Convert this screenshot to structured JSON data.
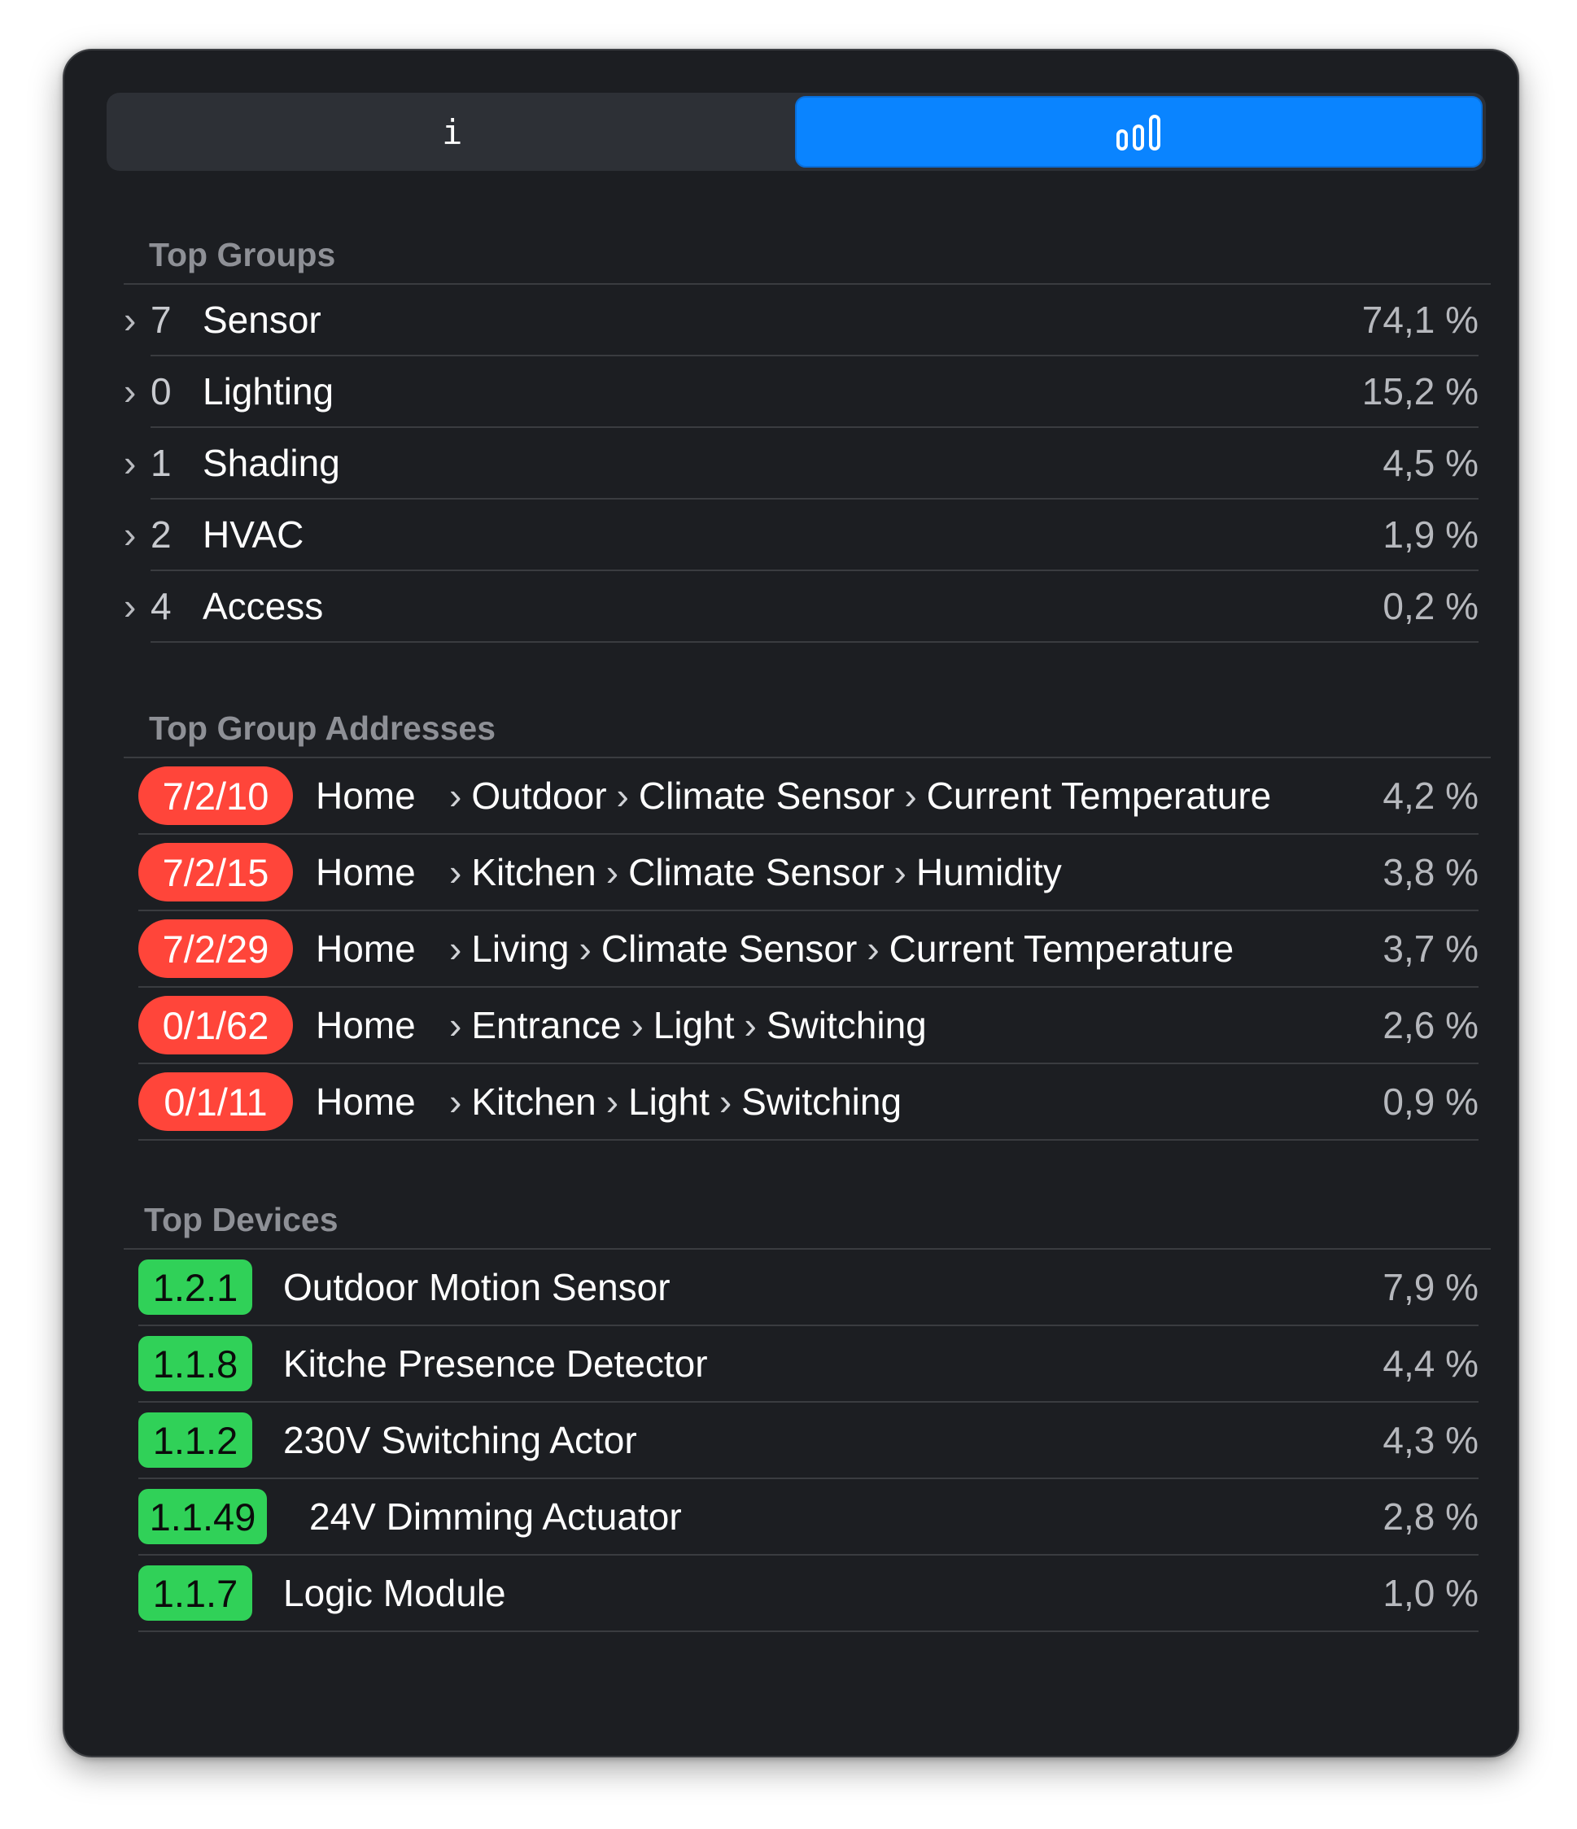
{
  "tabs": {
    "info_glyph": "i",
    "info_icon": "info-icon",
    "stats_icon": "bar-chart-icon"
  },
  "groups": {
    "title": "Top Groups",
    "items": [
      {
        "number": "7",
        "name": "Sensor",
        "value": "74,1 %"
      },
      {
        "number": "0",
        "name": "Lighting",
        "value": "15,2 %"
      },
      {
        "number": "1",
        "name": "Shading",
        "value": "4,5 %"
      },
      {
        "number": "2",
        "name": "HVAC",
        "value": "1,9 %"
      },
      {
        "number": "4",
        "name": "Access",
        "value": "0,2 %"
      }
    ]
  },
  "addresses": {
    "title": "Top Group Addresses",
    "items": [
      {
        "address": "7/2/10",
        "path": [
          "Home",
          "Outdoor",
          "Climate Sensor",
          "Current Temperature"
        ],
        "value": "4,2 %"
      },
      {
        "address": "7/2/15",
        "path": [
          "Home",
          "Kitchen",
          "Climate Sensor",
          "Humidity"
        ],
        "value": "3,8 %"
      },
      {
        "address": "7/2/29",
        "path": [
          "Home",
          "Living",
          "Climate Sensor",
          "Current Temperature"
        ],
        "value": "3,7 %"
      },
      {
        "address": "0/1/62",
        "path": [
          "Home",
          "Entrance",
          "Light",
          "Switching"
        ],
        "value": "2,6 %"
      },
      {
        "address": "0/1/11",
        "path": [
          "Home",
          "Kitchen",
          "Light",
          "Switching"
        ],
        "value": "0,9 %"
      }
    ]
  },
  "devices": {
    "title": "Top Devices",
    "items": [
      {
        "address": "1.2.1",
        "name": "Outdoor Motion Sensor",
        "value": "7,9 %"
      },
      {
        "address": "1.1.8",
        "name": "Kitche Presence Detector",
        "value": "4,4 %"
      },
      {
        "address": "1.1.2",
        "name": "230V Switching Actor",
        "value": "4,3 %"
      },
      {
        "address": "1.1.49",
        "name": "24V Dimming Actuator",
        "value": "2,8 %"
      },
      {
        "address": "1.1.7",
        "name": "Logic Module",
        "value": "1,0 %"
      }
    ]
  },
  "colors": {
    "accent": "#0a84ff",
    "address_badge": "#ff453a",
    "device_badge": "#30d158"
  }
}
